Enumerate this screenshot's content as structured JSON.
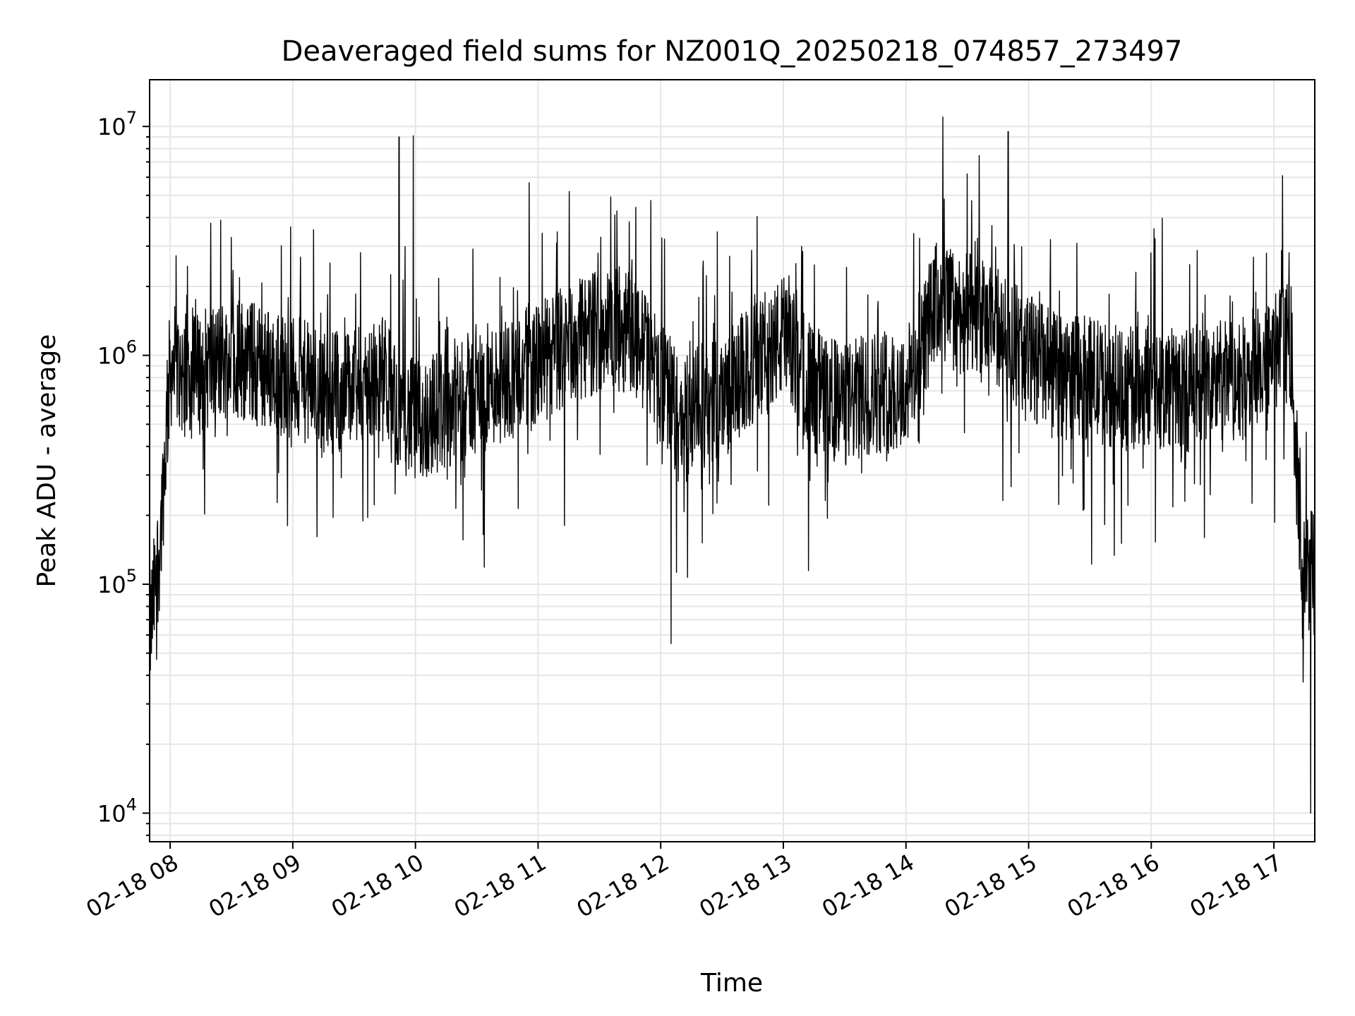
{
  "chart_data": {
    "type": "line",
    "title": "Deaveraged field sums for NZ001Q_20250218_074857_273497",
    "xlabel": "Time",
    "ylabel": "Peak ADU - average",
    "yscale": "log",
    "ylim": [
      7500,
      16000000
    ],
    "xlim": [
      "2025-02-18 07:49:57",
      "2025-02-18 17:20:00"
    ],
    "grid": true,
    "colors": {
      "series": "#000000",
      "grid": "#e6e6e6"
    },
    "x_ticks": [
      {
        "label": "02-18 08",
        "value": "2025-02-18 08:00"
      },
      {
        "label": "02-18 09",
        "value": "2025-02-18 09:00"
      },
      {
        "label": "02-18 10",
        "value": "2025-02-18 10:00"
      },
      {
        "label": "02-18 11",
        "value": "2025-02-18 11:00"
      },
      {
        "label": "02-18 12",
        "value": "2025-02-18 12:00"
      },
      {
        "label": "02-18 13",
        "value": "2025-02-18 13:00"
      },
      {
        "label": "02-18 14",
        "value": "2025-02-18 14:00"
      },
      {
        "label": "02-18 15",
        "value": "2025-02-18 15:00"
      },
      {
        "label": "02-18 16",
        "value": "2025-02-18 16:00"
      },
      {
        "label": "02-18 17",
        "value": "2025-02-18 17:00"
      }
    ],
    "y_ticks": [
      {
        "base": "10",
        "exp": "4",
        "value": 10000
      },
      {
        "base": "10",
        "exp": "5",
        "value": 100000
      },
      {
        "base": "10",
        "exp": "6",
        "value": 1000000
      },
      {
        "base": "10",
        "exp": "7",
        "value": 10000000
      }
    ],
    "series": [
      {
        "x": [
          "2025-02-18 07:50",
          "2025-02-18 07:55",
          "2025-02-18 08:00",
          "2025-02-18 08:10",
          "2025-02-18 08:20",
          "2025-02-18 08:30",
          "2025-02-18 08:45",
          "2025-02-18 09:00",
          "2025-02-18 09:15",
          "2025-02-18 09:30",
          "2025-02-18 09:45",
          "2025-02-18 09:52",
          "2025-02-18 10:00",
          "2025-02-18 10:15",
          "2025-02-18 10:30",
          "2025-02-18 10:45",
          "2025-02-18 11:00",
          "2025-02-18 11:15",
          "2025-02-18 11:30",
          "2025-02-18 11:45",
          "2025-02-18 12:00",
          "2025-02-18 12:10",
          "2025-02-18 12:20",
          "2025-02-18 12:30",
          "2025-02-18 12:45",
          "2025-02-18 13:00",
          "2025-02-18 13:15",
          "2025-02-18 13:30",
          "2025-02-18 13:45",
          "2025-02-18 14:00",
          "2025-02-18 14:15",
          "2025-02-18 14:30",
          "2025-02-18 14:45",
          "2025-02-18 15:00",
          "2025-02-18 15:15",
          "2025-02-18 15:30",
          "2025-02-18 15:45",
          "2025-02-18 16:00",
          "2025-02-18 16:15",
          "2025-02-18 16:30",
          "2025-02-18 16:45",
          "2025-02-18 17:00",
          "2025-02-18 17:08",
          "2025-02-18 17:14",
          "2025-02-18 17:20"
        ],
        "y": [
          60000,
          150000,
          900000,
          800000,
          900000,
          1000000,
          900000,
          800000,
          700000,
          700000,
          800000,
          600000,
          500000,
          600000,
          700000,
          800000,
          900000,
          1100000,
          1300000,
          1300000,
          800000,
          500000,
          600000,
          650000,
          900000,
          1200000,
          700000,
          600000,
          700000,
          700000,
          1700000,
          1500000,
          1300000,
          1000000,
          800000,
          800000,
          700000,
          750000,
          700000,
          750000,
          800000,
          1000000,
          1200000,
          100000,
          130000
        ],
        "spikes": [
          {
            "x": "2025-02-18 09:52",
            "y": 9000000
          },
          {
            "x": "2025-02-18 09:59",
            "y": 9100000
          },
          {
            "x": "2025-02-18 14:18",
            "y": 11000000
          },
          {
            "x": "2025-02-18 14:50",
            "y": 9500000
          },
          {
            "x": "2025-02-18 12:05",
            "y": 55000
          },
          {
            "x": "2025-02-18 17:18",
            "y": 10000
          }
        ]
      }
    ]
  }
}
